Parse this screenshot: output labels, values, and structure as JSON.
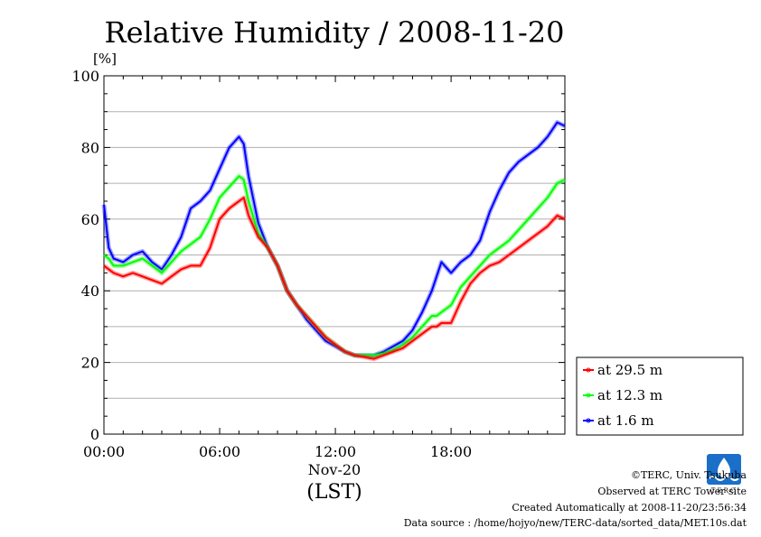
{
  "chart_data": {
    "type": "line",
    "title": "Relative Humidity / 2008-11-20",
    "ylabel_unit": "[%]",
    "xlabel_date": "Nov-20",
    "xlabel_tz": "(LST)",
    "ylim": [
      0,
      100
    ],
    "y_ticks": [
      "0",
      "20",
      "40",
      "60",
      "80",
      "100"
    ],
    "xlim": [
      0,
      23.9
    ],
    "x_ticks": [
      {
        "hour": 0,
        "label": "00:00"
      },
      {
        "hour": 6,
        "label": "06:00"
      },
      {
        "hour": 12,
        "label": "12:00"
      },
      {
        "hour": 18,
        "label": "18:00"
      }
    ],
    "grid": true,
    "legend_position": "bottom-right outside",
    "x": [
      0,
      0.25,
      0.5,
      1,
      1.5,
      2,
      2.5,
      3,
      3.5,
      4,
      4.5,
      5,
      5.5,
      6,
      6.5,
      7,
      7.25,
      7.5,
      8,
      8.5,
      9,
      9.5,
      10,
      10.5,
      11,
      11.5,
      12,
      12.5,
      13,
      13.5,
      14,
      14.5,
      15,
      15.5,
      16,
      16.5,
      17,
      17.25,
      17.5,
      18,
      18.5,
      19,
      19.5,
      20,
      20.5,
      21,
      21.5,
      22,
      22.5,
      23,
      23.5,
      23.9
    ],
    "series": [
      {
        "name": "at 29.5 m",
        "color": "#ff0000",
        "values": [
          47,
          46,
          45,
          44,
          45,
          44,
          43,
          42,
          44,
          46,
          47,
          47,
          52,
          60,
          63,
          65,
          66,
          61,
          55,
          52,
          47,
          40,
          36,
          33,
          30,
          27,
          25,
          23,
          22,
          21.5,
          21,
          22,
          23,
          24,
          26,
          28,
          30,
          30,
          31,
          31,
          37,
          42,
          45,
          47,
          48,
          50,
          52,
          54,
          56,
          58,
          61,
          60
        ]
      },
      {
        "name": "at 12.3 m",
        "color": "#00ff00",
        "values": [
          50,
          49,
          47,
          47,
          48,
          49,
          47,
          45,
          48,
          51,
          53,
          55,
          60,
          66,
          69,
          72,
          71,
          65,
          56,
          52,
          47,
          40,
          36,
          33,
          30,
          27,
          25,
          23,
          22,
          22,
          22,
          22.5,
          23.5,
          25,
          27,
          30,
          33,
          33,
          34,
          36,
          41,
          44,
          47,
          50,
          52,
          54,
          57,
          60,
          63,
          66,
          70,
          71
        ]
      },
      {
        "name": "at 1.6 m",
        "color": "#0000ff",
        "values": [
          64,
          52,
          49,
          48,
          50,
          51,
          48,
          46,
          50,
          55,
          63,
          65,
          68,
          74,
          80,
          83,
          81,
          72,
          59,
          52,
          47,
          40,
          36,
          32,
          29,
          26,
          24.5,
          23,
          22,
          22,
          22,
          23,
          24.5,
          26,
          29,
          34,
          40,
          44,
          48,
          45,
          48,
          50,
          54,
          62,
          68,
          73,
          76,
          78,
          80,
          83,
          87,
          86
        ]
      }
    ],
    "legend": [
      "at 29.5 m",
      "at 12.3 m",
      "at 1.6 m"
    ]
  },
  "footer": {
    "copyright": "©TERC, Univ. Tsukuba",
    "site": "Observed at TERC Tower site",
    "created": "Created Automatically at 2008-11-20/23:56:34",
    "source": "Data source : /home/hojyo/new/TERC-data/sorted_data/MET.10s.dat"
  },
  "logo": {
    "text": "TERC",
    "color": "#1a6fc9"
  }
}
